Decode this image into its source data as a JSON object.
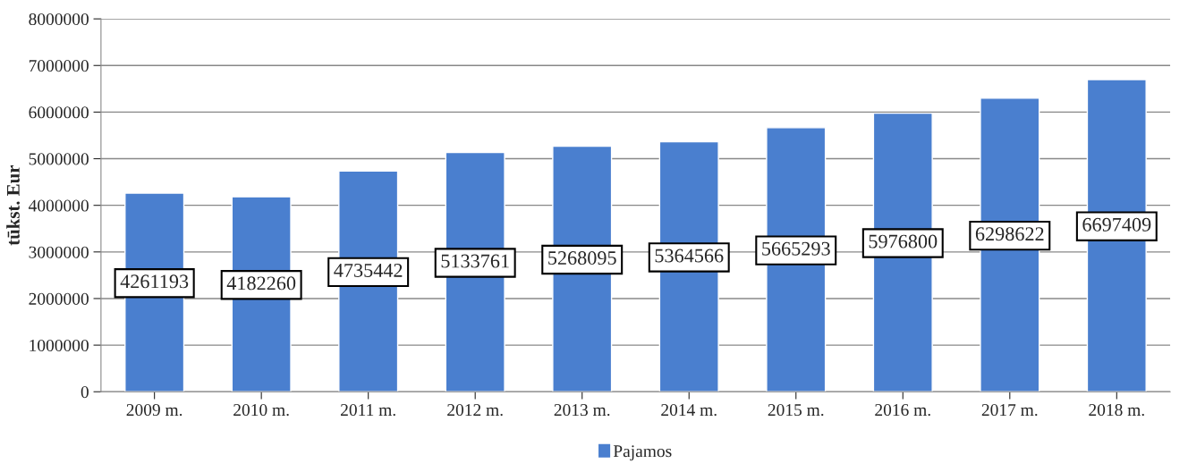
{
  "chart_data": {
    "type": "bar",
    "ylabel": "tūkst. Eur",
    "categories": [
      "2009 m.",
      "2010 m.",
      "2011 m.",
      "2012 m.",
      "2013 m.",
      "2014 m.",
      "2015 m.",
      "2016 m.",
      "2017 m.",
      "2018 m."
    ],
    "series": [
      {
        "name": "Pajamos",
        "color": "#4a7fcf",
        "values": [
          4261193,
          4182260,
          4735442,
          5133761,
          5268095,
          5364566,
          5665293,
          5976800,
          6298622,
          6697409
        ]
      }
    ],
    "ylim": [
      0,
      8000000
    ],
    "yticks": [
      0,
      1000000,
      2000000,
      3000000,
      4000000,
      5000000,
      6000000,
      7000000,
      8000000
    ],
    "grid": "y",
    "legend": "bottom",
    "data_labels": true
  }
}
